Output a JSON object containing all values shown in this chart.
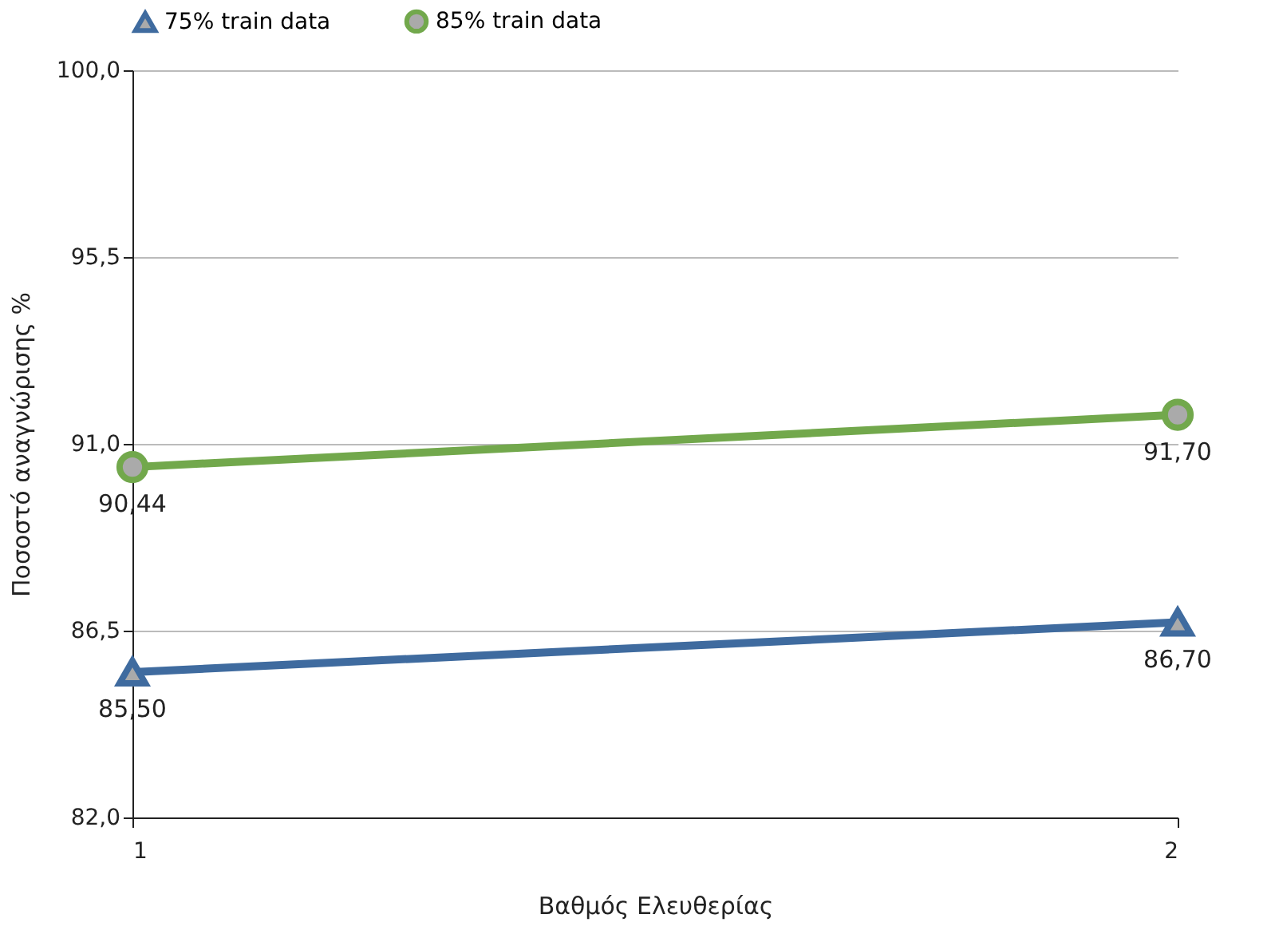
{
  "chart_data": {
    "type": "line",
    "xlabel": "Βαθμός Ελευθερίας",
    "ylabel": "Ποσοστό αναγνώρισης %",
    "x": [
      1,
      2
    ],
    "xlim": [
      1,
      2
    ],
    "xticks": [
      1,
      2
    ],
    "ylim": [
      82,
      100
    ],
    "yticks": [
      {
        "value": 82,
        "label": "82,0"
      },
      {
        "value": 86.5,
        "label": "86,5"
      },
      {
        "value": 91,
        "label": "91,0"
      },
      {
        "value": 95.5,
        "label": "95,5"
      },
      {
        "value": 100,
        "label": "100,0"
      }
    ],
    "grid": "y",
    "legend": "top",
    "line_style": "solid",
    "series": [
      {
        "name": "75% train data",
        "color": "#3f6b9f",
        "marker": "triangle",
        "values": [
          85.5,
          86.7
        ],
        "value_labels": [
          "85,50",
          "86,70"
        ]
      },
      {
        "name": "85% train data",
        "color": "#72a84c",
        "marker": "circle",
        "values": [
          90.44,
          91.7
        ],
        "value_labels": [
          "90,44",
          "91,70"
        ]
      }
    ]
  }
}
